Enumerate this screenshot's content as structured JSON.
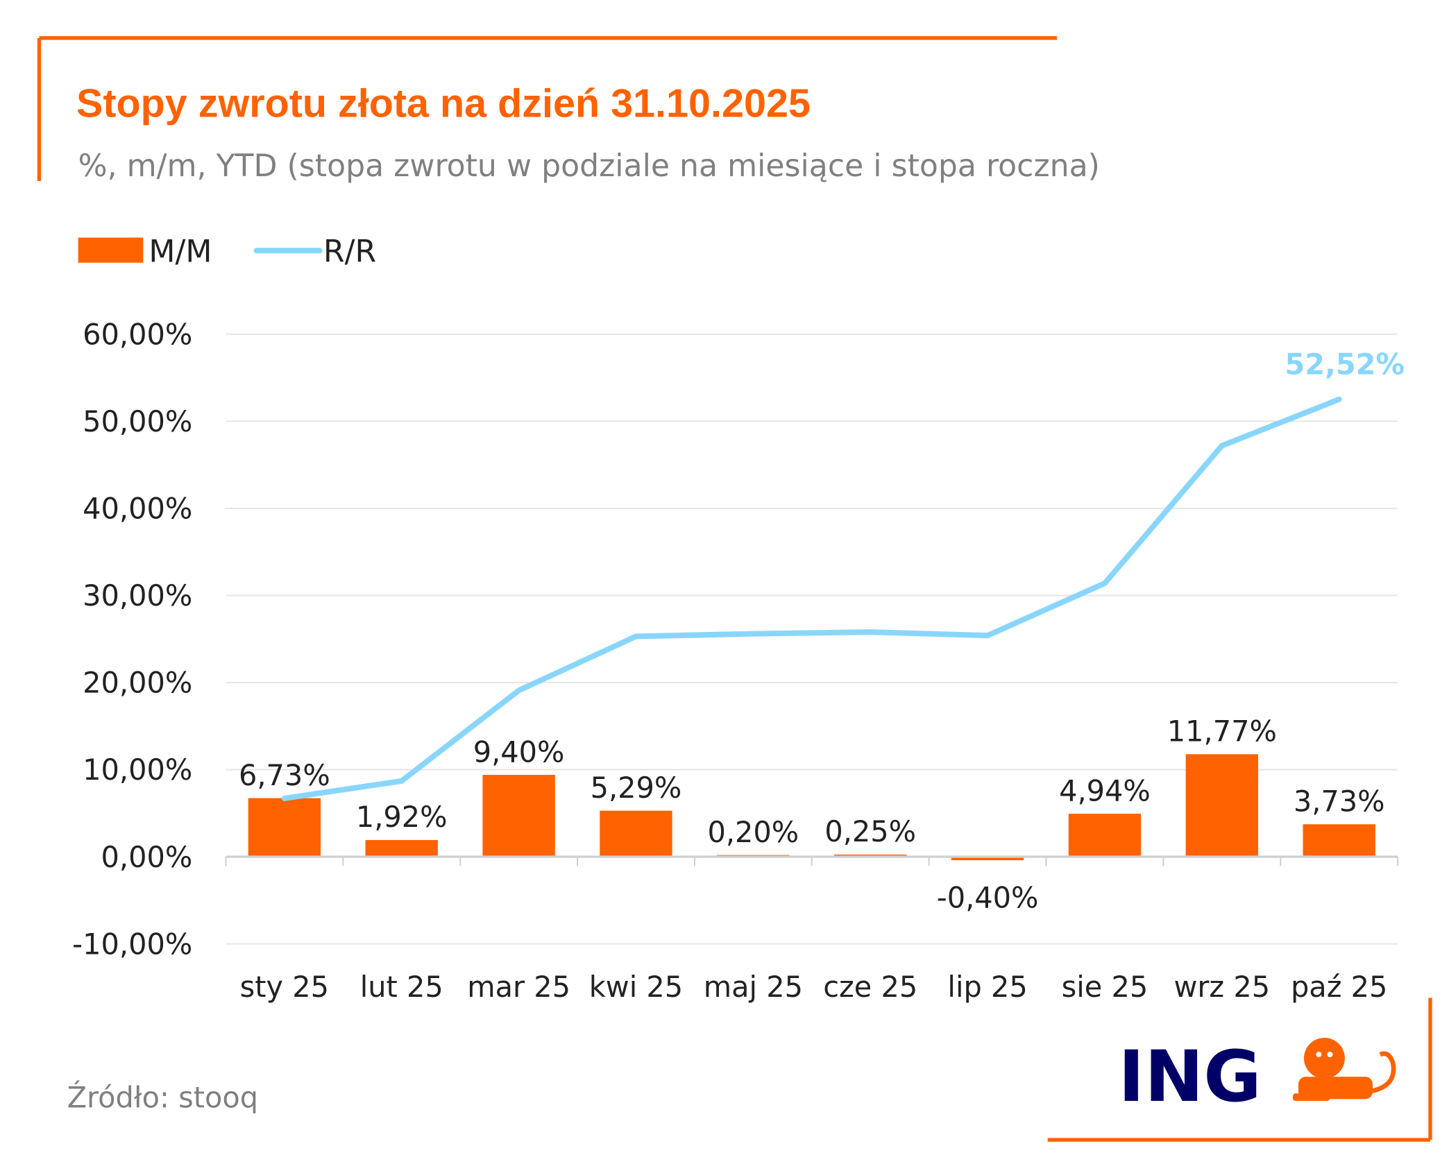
{
  "title": "Stopy zwrotu złota na dzień 31.10.2025",
  "subtitle": "%, m/m, YTD (stopa zwrotu w podziale na miesiące i stopa roczna)",
  "source": "Źródło: stooq",
  "logo_text": "ING",
  "colors": {
    "accent": "#FF6200",
    "bars": "#FF6200",
    "line": "#89D6FD",
    "logo_text": "#000066"
  },
  "chart_data": {
    "type": "bar+line",
    "categories": [
      "sty 25",
      "lut 25",
      "mar 25",
      "kwi 25",
      "maj 25",
      "cze 25",
      "lip 25",
      "sie 25",
      "wrz 25",
      "paź 25"
    ],
    "series": [
      {
        "name": "M/M",
        "type": "bar",
        "values": [
          6.73,
          1.92,
          9.4,
          5.29,
          0.2,
          0.25,
          -0.4,
          4.94,
          11.77,
          3.73
        ],
        "labels": [
          "6,73%",
          "1,92%",
          "9,40%",
          "5,29%",
          "0,20%",
          "0,25%",
          "-0,40%",
          "4,94%",
          "11,77%",
          "3,73%"
        ]
      },
      {
        "name": "R/R",
        "type": "line",
        "values": [
          6.7,
          8.7,
          19.1,
          25.3,
          25.6,
          25.8,
          25.4,
          31.4,
          47.2,
          52.52
        ],
        "last_label": "52,52%"
      }
    ],
    "ylim": [
      -10,
      60
    ],
    "yticks": [
      "-10,00%",
      "0,00%",
      "10,00%",
      "20,00%",
      "30,00%",
      "40,00%",
      "50,00%",
      "60,00%"
    ],
    "grid": true,
    "legend": "top-left"
  }
}
